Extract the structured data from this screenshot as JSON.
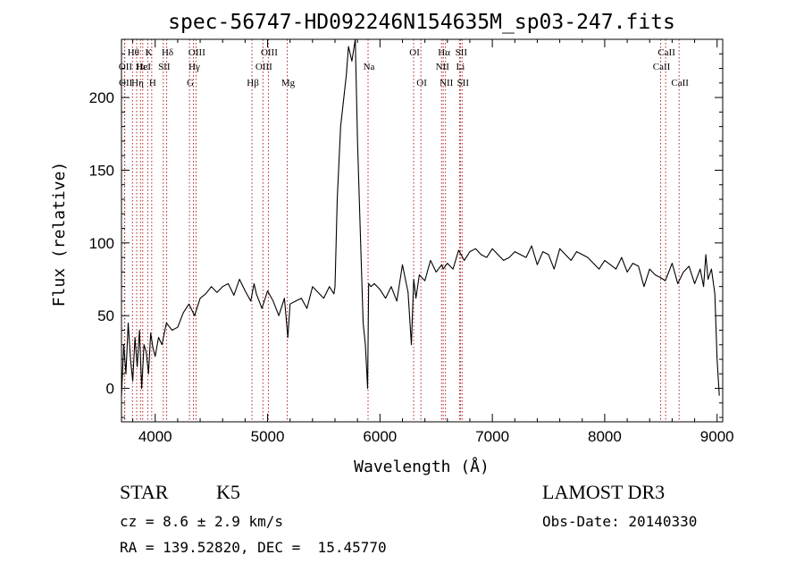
{
  "chart_data": {
    "type": "line",
    "title": "spec-56747-HD092246N154635M_sp03-247.fits",
    "xlabel": "Wavelength (Å)",
    "ylabel": "Flux (relative)",
    "xlim": [
      3700,
      9050
    ],
    "ylim": [
      -23,
      240
    ],
    "xticks": [
      4000,
      5000,
      6000,
      7000,
      8000,
      9000
    ],
    "yticks": [
      0,
      50,
      100,
      150,
      200
    ],
    "line_color": "#000000",
    "marker_color": "#b22222",
    "series": [
      {
        "x": [
          3700,
          3720,
          3740,
          3760,
          3780,
          3800,
          3820,
          3840,
          3860,
          3880,
          3900,
          3920,
          3940,
          3960,
          3980,
          4000,
          4030,
          4060,
          4100,
          4150,
          4200,
          4250,
          4300,
          4350,
          4400,
          4450,
          4500,
          4550,
          4600,
          4650,
          4700,
          4750,
          4800,
          4850,
          4880,
          4900,
          4950,
          5000,
          5050,
          5100,
          5150,
          5180,
          5200,
          5250,
          5300,
          5350,
          5400,
          5450,
          5500,
          5550,
          5590,
          5600,
          5620,
          5650,
          5700,
          5720,
          5750,
          5780,
          5800,
          5820,
          5850,
          5870,
          5890,
          5900,
          5920,
          5950,
          6000,
          6050,
          6100,
          6150,
          6200,
          6250,
          6280,
          6300,
          6320,
          6350,
          6400,
          6450,
          6500,
          6550,
          6563,
          6600,
          6650,
          6700,
          6750,
          6800,
          6850,
          6900,
          6950,
          7000,
          7050,
          7100,
          7150,
          7200,
          7250,
          7300,
          7350,
          7400,
          7450,
          7500,
          7550,
          7600,
          7650,
          7700,
          7750,
          7800,
          7850,
          7900,
          7950,
          8000,
          8050,
          8100,
          8150,
          8200,
          8250,
          8300,
          8350,
          8400,
          8450,
          8500,
          8540,
          8600,
          8650,
          8700,
          8750,
          8800,
          8850,
          8880,
          8900,
          8920,
          8950,
          8980,
          9000,
          9020
        ],
        "y": [
          -5,
          30,
          10,
          45,
          20,
          5,
          35,
          15,
          40,
          0,
          30,
          25,
          10,
          38,
          28,
          22,
          35,
          30,
          45,
          40,
          42,
          52,
          58,
          50,
          62,
          65,
          70,
          66,
          70,
          72,
          64,
          75,
          67,
          60,
          72,
          65,
          55,
          67,
          60,
          50,
          62,
          35,
          58,
          60,
          62,
          55,
          70,
          66,
          62,
          70,
          65,
          70,
          130,
          180,
          215,
          235,
          225,
          240,
          170,
          120,
          45,
          30,
          0,
          72,
          70,
          72,
          68,
          62,
          70,
          60,
          85,
          66,
          30,
          75,
          62,
          78,
          74,
          88,
          80,
          85,
          82,
          86,
          82,
          95,
          88,
          94,
          96,
          92,
          90,
          96,
          92,
          88,
          90,
          94,
          92,
          90,
          98,
          85,
          94,
          92,
          82,
          96,
          92,
          88,
          94,
          92,
          90,
          86,
          82,
          88,
          85,
          82,
          90,
          80,
          86,
          84,
          70,
          82,
          78,
          76,
          74,
          86,
          72,
          80,
          84,
          72,
          82,
          70,
          92,
          75,
          82,
          65,
          20,
          -5
        ]
      }
    ],
    "lines": [
      {
        "wl": 3727,
        "label": "OII",
        "row": 2
      },
      {
        "wl": 3729,
        "label": "OII",
        "row": 3
      },
      {
        "wl": 3798,
        "label": "Hθ",
        "row": 1
      },
      {
        "wl": 3835,
        "label": "Hη",
        "row": 3
      },
      {
        "wl": 3869,
        "label": "Hε",
        "row": 2
      },
      {
        "wl": 3889,
        "label": "HeI",
        "row": 2
      },
      {
        "wl": 3934,
        "label": "K",
        "row": 1
      },
      {
        "wl": 3969,
        "label": "H",
        "row": 3
      },
      {
        "wl": 4072,
        "label": "SII",
        "row": 2
      },
      {
        "wl": 4102,
        "label": "Hδ",
        "row": 1
      },
      {
        "wl": 4305,
        "label": "G",
        "row": 3
      },
      {
        "wl": 4340,
        "label": "Hγ",
        "row": 2
      },
      {
        "wl": 4363,
        "label": "OIII",
        "row": 1
      },
      {
        "wl": 4861,
        "label": "Hβ",
        "row": 3
      },
      {
        "wl": 4959,
        "label": "OIII",
        "row": 2
      },
      {
        "wl": 5007,
        "label": "OIII",
        "row": 1
      },
      {
        "wl": 5175,
        "label": "Mg",
        "row": 3
      },
      {
        "wl": 5894,
        "label": "Na",
        "row": 2
      },
      {
        "wl": 6300,
        "label": "OI",
        "row": 1
      },
      {
        "wl": 6364,
        "label": "OI",
        "row": 3
      },
      {
        "wl": 6548,
        "label": "NII",
        "row": 2
      },
      {
        "wl": 6563,
        "label": "Hα",
        "row": 1
      },
      {
        "wl": 6583,
        "label": "NII",
        "row": 3
      },
      {
        "wl": 6708,
        "label": "Li",
        "row": 2
      },
      {
        "wl": 6716,
        "label": "SII",
        "row": 1
      },
      {
        "wl": 6731,
        "label": "SII",
        "row": 3
      },
      {
        "wl": 8498,
        "label": "CaII",
        "row": 2
      },
      {
        "wl": 8542,
        "label": "CaII",
        "row": 1
      },
      {
        "wl": 8662,
        "label": "CaII",
        "row": 3
      }
    ]
  },
  "footer": {
    "object_class": "STAR",
    "spectral_type": "K5",
    "survey": "LAMOST DR3",
    "redshift": "cz = 8.6 ± 2.9 km/s",
    "obs_date": "Obs-Date: 20140330",
    "coords": "RA = 139.52820, DEC =  15.45770"
  }
}
